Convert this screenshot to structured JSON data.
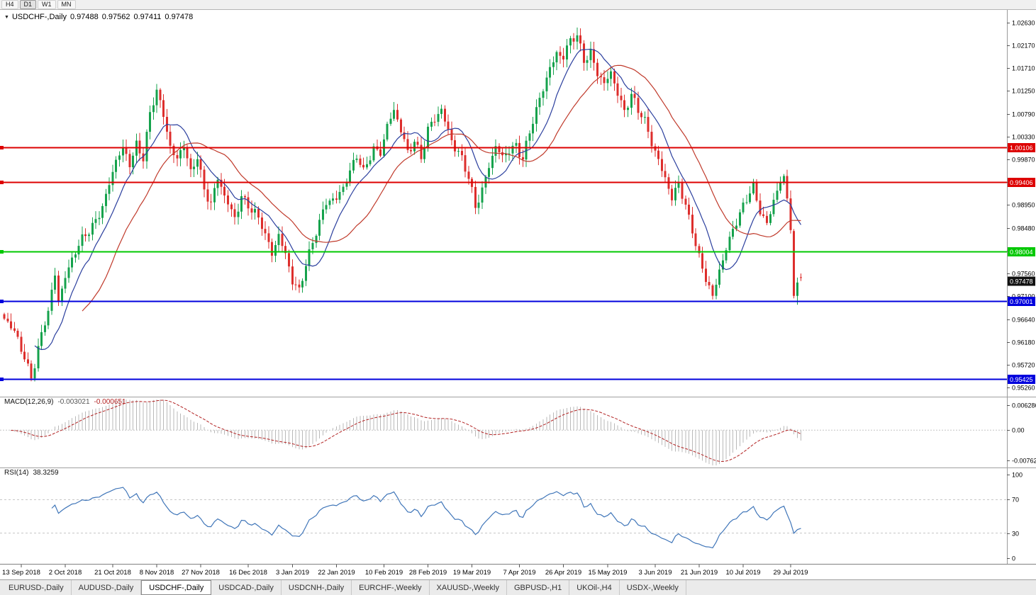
{
  "toolbar": {
    "timeframes": [
      "H4",
      "D1",
      "W1",
      "MN"
    ],
    "active": "D1"
  },
  "chart": {
    "symbol": "USDCHF-,Daily",
    "ohlc": {
      "open": "0.97488",
      "high": "0.97562",
      "low": "0.97411",
      "close": "0.97478"
    }
  },
  "indicators": {
    "macd": {
      "label": "MACD(12,26,9)",
      "value1": "-0.003021",
      "value2": "-0.000651",
      "ticks": [
        "0.006286",
        "0.00",
        "-0.00762"
      ]
    },
    "rsi": {
      "label": "RSI(14)",
      "value": "38.3259",
      "ticks": [
        "100",
        "70",
        "30",
        "0"
      ],
      "levels": [
        70,
        30
      ]
    }
  },
  "tabs": [
    {
      "label": "EURUSD-,Daily",
      "active": false
    },
    {
      "label": "AUDUSD-,Daily",
      "active": false
    },
    {
      "label": "USDCHF-,Daily",
      "active": true
    },
    {
      "label": "USDCAD-,Daily",
      "active": false
    },
    {
      "label": "USDCNH-,Daily",
      "active": false
    },
    {
      "label": "EURCHF-,Weekly",
      "active": false
    },
    {
      "label": "XAUUSD-,Weekly",
      "active": false
    },
    {
      "label": "GBPUSD-,H1",
      "active": false
    },
    {
      "label": "UKOil-,H4",
      "active": false
    },
    {
      "label": "USDX-,Weekly",
      "active": false
    }
  ],
  "colors": {
    "bull": "#15a24c",
    "bear": "#dd2e2c",
    "macd_histogram": "#b9b9b9",
    "macd_signal": "#b22222",
    "rsi_line": "#4076b9",
    "axis_text": "#000000",
    "grid_dash": "#c4c4c4",
    "separator": "#a0a0a0",
    "current_price_bg": "#111111"
  },
  "chart_data": {
    "type": "candlestick",
    "title": "USDCHF-,Daily",
    "symbol": "USDCHF",
    "timeframe": "Daily",
    "last_ohlc": [
      0.97488,
      0.97562,
      0.97411,
      0.97478
    ],
    "y_axis": {
      "top": 1.0263,
      "bottom": 0.9526,
      "ticks": [
        "1.02630",
        "1.02170",
        "1.01710",
        "1.01250",
        "1.00790",
        "1.00330",
        "0.99870",
        "0.99410",
        "0.98950",
        "0.98480",
        "0.98020",
        "0.97560",
        "0.97100",
        "0.96640",
        "0.96180",
        "0.95720",
        "0.95260"
      ]
    },
    "x_axis": {
      "labels": [
        "13 Sep 2018",
        "2 Oct 2018",
        "21 Oct 2018",
        "8 Nov 2018",
        "27 Nov 2018",
        "16 Dec 2018",
        "3 Jan 2019",
        "22 Jan 2019",
        "10 Feb 2019",
        "28 Feb 2019",
        "19 Mar 2019",
        "7 Apr 2019",
        "26 Apr 2019",
        "15 May 2019",
        "3 Jun 2019",
        "21 Jun 2019",
        "10 Jul 2019",
        "29 Jul 2019"
      ],
      "indices": [
        5,
        18,
        32,
        45,
        58,
        72,
        85,
        98,
        112,
        125,
        138,
        152,
        165,
        178,
        192,
        205,
        218,
        232
      ]
    },
    "hlines": [
      {
        "price": 1.00106,
        "label": "1.00106",
        "color": "#dd0000"
      },
      {
        "price": 0.99406,
        "label": "0.99406",
        "color": "#dd0000"
      },
      {
        "price": 0.98004,
        "label": "0.98004",
        "color": "#00c800"
      },
      {
        "price": 0.97001,
        "label": "0.97001",
        "color": "#0000dd"
      },
      {
        "price": 0.95425,
        "label": "0.95425",
        "color": "#0000dd"
      }
    ],
    "current_price": {
      "label": "0.97478",
      "value": 0.97478
    },
    "moving_averages": [
      {
        "period": 10,
        "color": "#2b3f9e"
      },
      {
        "period": 24,
        "color": "#c03a2b"
      }
    ],
    "candle_count": 236,
    "price_path_anchors": [
      [
        0,
        0.9665
      ],
      [
        3,
        0.9632
      ],
      [
        6,
        0.959
      ],
      [
        8,
        0.9552
      ],
      [
        10,
        0.9606
      ],
      [
        13,
        0.9675
      ],
      [
        15,
        0.9752
      ],
      [
        16,
        0.9702
      ],
      [
        18,
        0.9758
      ],
      [
        21,
        0.98
      ],
      [
        24,
        0.9828
      ],
      [
        27,
        0.9866
      ],
      [
        30,
        0.9916
      ],
      [
        33,
        0.9978
      ],
      [
        35,
        1.0005
      ],
      [
        37,
        0.9982
      ],
      [
        39,
        1.0022
      ],
      [
        41,
        0.9992
      ],
      [
        43,
        1.0072
      ],
      [
        45,
        1.0122
      ],
      [
        47,
        1.0078
      ],
      [
        49,
        1.002
      ],
      [
        51,
        0.9988
      ],
      [
        53,
        1.0012
      ],
      [
        55,
        0.9952
      ],
      [
        57,
        0.9996
      ],
      [
        59,
        0.993
      ],
      [
        61,
        0.9902
      ],
      [
        63,
        0.9944
      ],
      [
        65,
        0.9906
      ],
      [
        68,
        0.9872
      ],
      [
        70,
        0.9918
      ],
      [
        73,
        0.9882
      ],
      [
        76,
        0.985
      ],
      [
        79,
        0.9802
      ],
      [
        81,
        0.984
      ],
      [
        83,
        0.9792
      ],
      [
        85,
        0.9734
      ],
      [
        87,
        0.9718
      ],
      [
        89,
        0.9782
      ],
      [
        92,
        0.9844
      ],
      [
        95,
        0.9892
      ],
      [
        98,
        0.9908
      ],
      [
        101,
        0.9952
      ],
      [
        104,
        0.9992
      ],
      [
        106,
        0.9954
      ],
      [
        109,
        1.0012
      ],
      [
        111,
        1.0006
      ],
      [
        113,
        1.0058
      ],
      [
        115,
        1.0078
      ],
      [
        117,
        1.0042
      ],
      [
        119,
        1.0002
      ],
      [
        121,
        1.0032
      ],
      [
        123,
        0.9992
      ],
      [
        125,
        1.0042
      ],
      [
        127,
        1.0062
      ],
      [
        129,
        1.0088
      ],
      [
        131,
        1.0052
      ],
      [
        133,
        1.0012
      ],
      [
        135,
        0.9986
      ],
      [
        137,
        0.9942
      ],
      [
        139,
        0.9892
      ],
      [
        141,
        0.993
      ],
      [
        143,
        0.998
      ],
      [
        145,
        1.0008
      ],
      [
        147,
        0.9986
      ],
      [
        149,
        1.0002
      ],
      [
        151,
        1.0022
      ],
      [
        153,
        0.9992
      ],
      [
        155,
        1.0042
      ],
      [
        157,
        1.0078
      ],
      [
        159,
        1.0128
      ],
      [
        161,
        1.0176
      ],
      [
        163,
        1.0208
      ],
      [
        165,
        1.0192
      ],
      [
        167,
        1.0222
      ],
      [
        169,
        1.0232
      ],
      [
        171,
        1.0192
      ],
      [
        173,
        1.0208
      ],
      [
        175,
        1.0162
      ],
      [
        177,
        1.0132
      ],
      [
        179,
        1.0158
      ],
      [
        181,
        1.0122
      ],
      [
        183,
        1.0092
      ],
      [
        185,
        1.0118
      ],
      [
        187,
        1.0082
      ],
      [
        189,
        1.0058
      ],
      [
        191,
        1.0022
      ],
      [
        193,
        0.9992
      ],
      [
        195,
        0.9952
      ],
      [
        197,
        0.9902
      ],
      [
        199,
        0.9932
      ],
      [
        201,
        0.9892
      ],
      [
        203,
        0.9852
      ],
      [
        205,
        0.9792
      ],
      [
        207,
        0.9742
      ],
      [
        209,
        0.9702
      ],
      [
        211,
        0.9762
      ],
      [
        213,
        0.9812
      ],
      [
        215,
        0.9852
      ],
      [
        217,
        0.9872
      ],
      [
        219,
        0.9902
      ],
      [
        221,
        0.9928
      ],
      [
        223,
        0.9888
      ],
      [
        225,
        0.9862
      ],
      [
        227,
        0.9902
      ],
      [
        229,
        0.9936
      ],
      [
        230,
        0.9942
      ],
      [
        231,
        0.9906
      ],
      [
        232,
        0.9852
      ],
      [
        233,
        0.9732
      ],
      [
        234,
        0.9706
      ],
      [
        235,
        0.9748
      ]
    ],
    "forced_candles": {
      "233": [
        0.9842,
        0.9846,
        0.9706,
        0.9711
      ],
      "234": [
        0.9711,
        0.9748,
        0.9693,
        0.9738
      ],
      "235": [
        0.97488,
        0.97562,
        0.97411,
        0.97478
      ]
    }
  }
}
